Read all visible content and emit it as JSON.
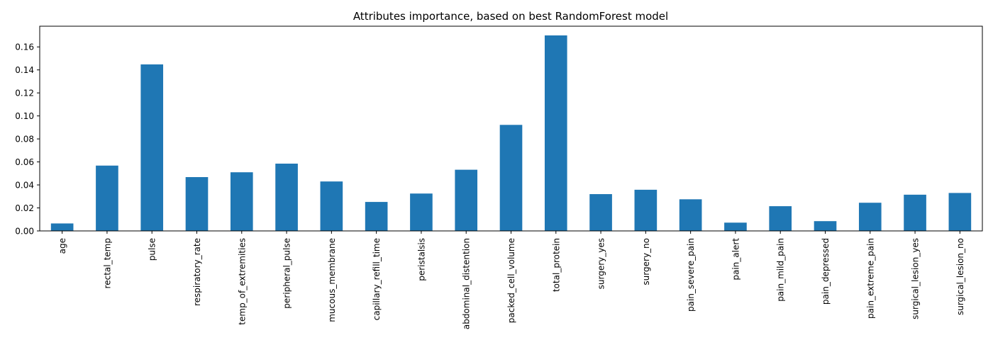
{
  "chart_data": {
    "type": "bar",
    "title": "Attributes importance, based on best RandomForest model",
    "xlabel": "",
    "ylabel": "",
    "categories": [
      "age",
      "rectal_temp",
      "pulse",
      "respiratory_rate",
      "temp_of_extremities",
      "peripheral_pulse",
      "mucous_membrane",
      "capillary_refill_time",
      "peristalsis",
      "abdominal_distention",
      "packed_cell_volume",
      "total_protein",
      "surgery_yes",
      "surgery_no",
      "pain_severe_pain",
      "pain_alert",
      "pain_mild_pain",
      "pain_depressed",
      "pain_extreme_pain",
      "surgical_lesion_yes",
      "surgical_lesion_no"
    ],
    "values": [
      0.0065,
      0.0568,
      0.1448,
      0.0468,
      0.051,
      0.0585,
      0.043,
      0.0252,
      0.0325,
      0.0532,
      0.0922,
      0.17,
      0.032,
      0.0358,
      0.0275,
      0.0072,
      0.0215,
      0.0085,
      0.0245,
      0.0315,
      0.033
    ],
    "ylim": [
      0.0,
      0.178
    ],
    "yticks": [
      0.0,
      0.02,
      0.04,
      0.06,
      0.08,
      0.1,
      0.12,
      0.14,
      0.16
    ],
    "ytick_labels": [
      "0.00",
      "0.02",
      "0.04",
      "0.06",
      "0.08",
      "0.10",
      "0.12",
      "0.14",
      "0.16"
    ],
    "bar_color": "#1f77b4",
    "grid": false,
    "legend": "none"
  }
}
